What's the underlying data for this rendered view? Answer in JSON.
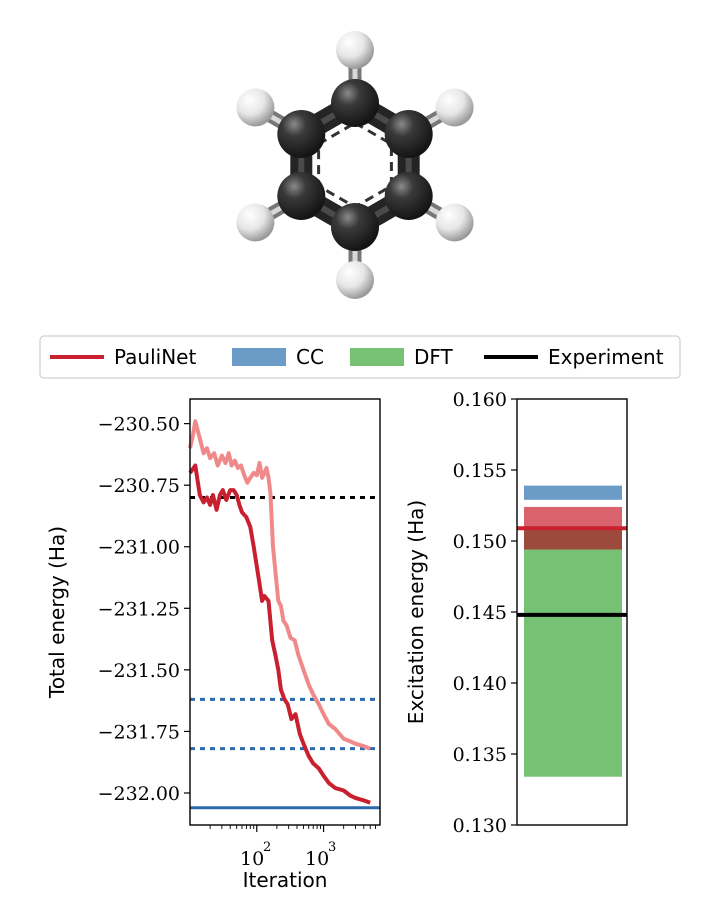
{
  "legend": [
    {
      "name": "PauliNet",
      "color": "#c8202f",
      "kind": "line"
    },
    {
      "name": "CC",
      "color": "#6b9cc8",
      "kind": "patch"
    },
    {
      "name": "DFT",
      "color": "#76c173",
      "kind": "patch"
    },
    {
      "name": "Experiment",
      "color": "#000000",
      "kind": "line"
    }
  ],
  "chart_data": [
    {
      "type": "line",
      "xlabel": "Iteration",
      "ylabel": "Total energy (Ha)",
      "xscale": "log",
      "xlim": [
        10,
        7000
      ],
      "ylim": [
        -232.13,
        -230.4
      ],
      "yticks": [
        "−230.50",
        "−230.75",
        "−231.00",
        "−231.25",
        "−231.50",
        "−231.75",
        "−232.00"
      ],
      "xticks": [
        "10",
        "2",
        "10",
        "3"
      ],
      "series": [
        {
          "color": "#c8202f",
          "x": [
            10,
            12,
            14,
            16,
            18,
            20,
            22,
            25,
            28,
            31,
            35,
            40,
            45,
            50,
            55,
            60,
            70,
            80,
            90,
            100,
            110,
            120,
            130,
            150,
            170,
            190,
            210,
            230,
            260,
            290,
            330,
            380,
            440,
            500,
            600,
            700,
            850,
            1000,
            1200,
            1500,
            2000,
            2500,
            3000,
            4000,
            5000
          ],
          "y": [
            -230.7,
            -230.67,
            -230.79,
            -230.82,
            -230.8,
            -230.83,
            -230.79,
            -230.85,
            -230.79,
            -230.77,
            -230.81,
            -230.77,
            -230.77,
            -230.79,
            -230.83,
            -230.86,
            -230.88,
            -230.92,
            -231.0,
            -231.08,
            -231.15,
            -231.22,
            -231.2,
            -231.22,
            -231.38,
            -231.44,
            -231.5,
            -231.58,
            -231.62,
            -231.64,
            -231.7,
            -231.68,
            -231.76,
            -231.8,
            -231.85,
            -231.88,
            -231.9,
            -231.93,
            -231.96,
            -231.98,
            -231.99,
            -232.01,
            -232.02,
            -232.03,
            -232.04
          ]
        },
        {
          "color": "#f08a8a",
          "x": [
            10,
            11,
            12,
            14,
            16,
            18,
            20,
            23,
            26,
            30,
            34,
            38,
            42,
            47,
            52,
            58,
            65,
            72,
            80,
            90,
            100,
            110,
            120,
            130,
            140,
            150,
            160,
            175,
            190,
            210,
            230,
            250,
            280,
            320,
            370,
            420,
            500,
            600,
            700,
            850,
            1000,
            1200,
            1500,
            2000,
            2500,
            3000,
            4000,
            5000
          ],
          "y": [
            -230.6,
            -230.55,
            -230.49,
            -230.56,
            -230.62,
            -230.6,
            -230.64,
            -230.62,
            -230.67,
            -230.63,
            -230.66,
            -230.62,
            -230.67,
            -230.65,
            -230.68,
            -230.67,
            -230.71,
            -230.74,
            -230.72,
            -230.7,
            -230.71,
            -230.66,
            -230.72,
            -230.7,
            -230.68,
            -230.72,
            -230.78,
            -231.0,
            -231.1,
            -231.22,
            -231.24,
            -231.3,
            -231.32,
            -231.37,
            -231.38,
            -231.44,
            -231.5,
            -231.56,
            -231.6,
            -231.64,
            -231.68,
            -231.72,
            -231.74,
            -231.78,
            -231.79,
            -231.8,
            -231.81,
            -231.82
          ]
        }
      ],
      "hlines": [
        {
          "y": -230.8,
          "color": "#000000",
          "style": "dotted"
        },
        {
          "y": -231.62,
          "color": "#2a6aad",
          "style": "dotted"
        },
        {
          "y": -231.82,
          "color": "#2a6aad",
          "style": "dotted"
        },
        {
          "y": -232.06,
          "color": "#2a6aad",
          "style": "solid"
        }
      ]
    },
    {
      "type": "bar",
      "ylabel": "Excitation energy (Ha)",
      "ylim": [
        0.13,
        0.16
      ],
      "yticks": [
        "0.130",
        "0.135",
        "0.140",
        "0.145",
        "0.150",
        "0.155",
        "0.160"
      ],
      "bands": [
        {
          "label": "CC",
          "ymin": 0.1529,
          "ymax": 0.1539,
          "color": "#6b9cc8"
        },
        {
          "label": "PauliNet",
          "ymin": 0.1494,
          "ymax": 0.1524,
          "color": "#d8636c"
        },
        {
          "label": "DFT",
          "ymin": 0.1334,
          "ymax": 0.1494,
          "color": "#76c173"
        },
        {
          "label": "overlap",
          "ymin": 0.1494,
          "ymax": 0.1509,
          "color": "#9c4a3b"
        }
      ],
      "lines": [
        {
          "label": "PauliNet",
          "y": 0.1509,
          "color": "#c8202f"
        },
        {
          "label": "Experiment",
          "y": 0.1448,
          "color": "#000000"
        }
      ]
    }
  ],
  "molecule": {
    "name": "benzene",
    "carbon_color": "#2b2b2b",
    "hydrogen_color": "#f4f4f4"
  }
}
